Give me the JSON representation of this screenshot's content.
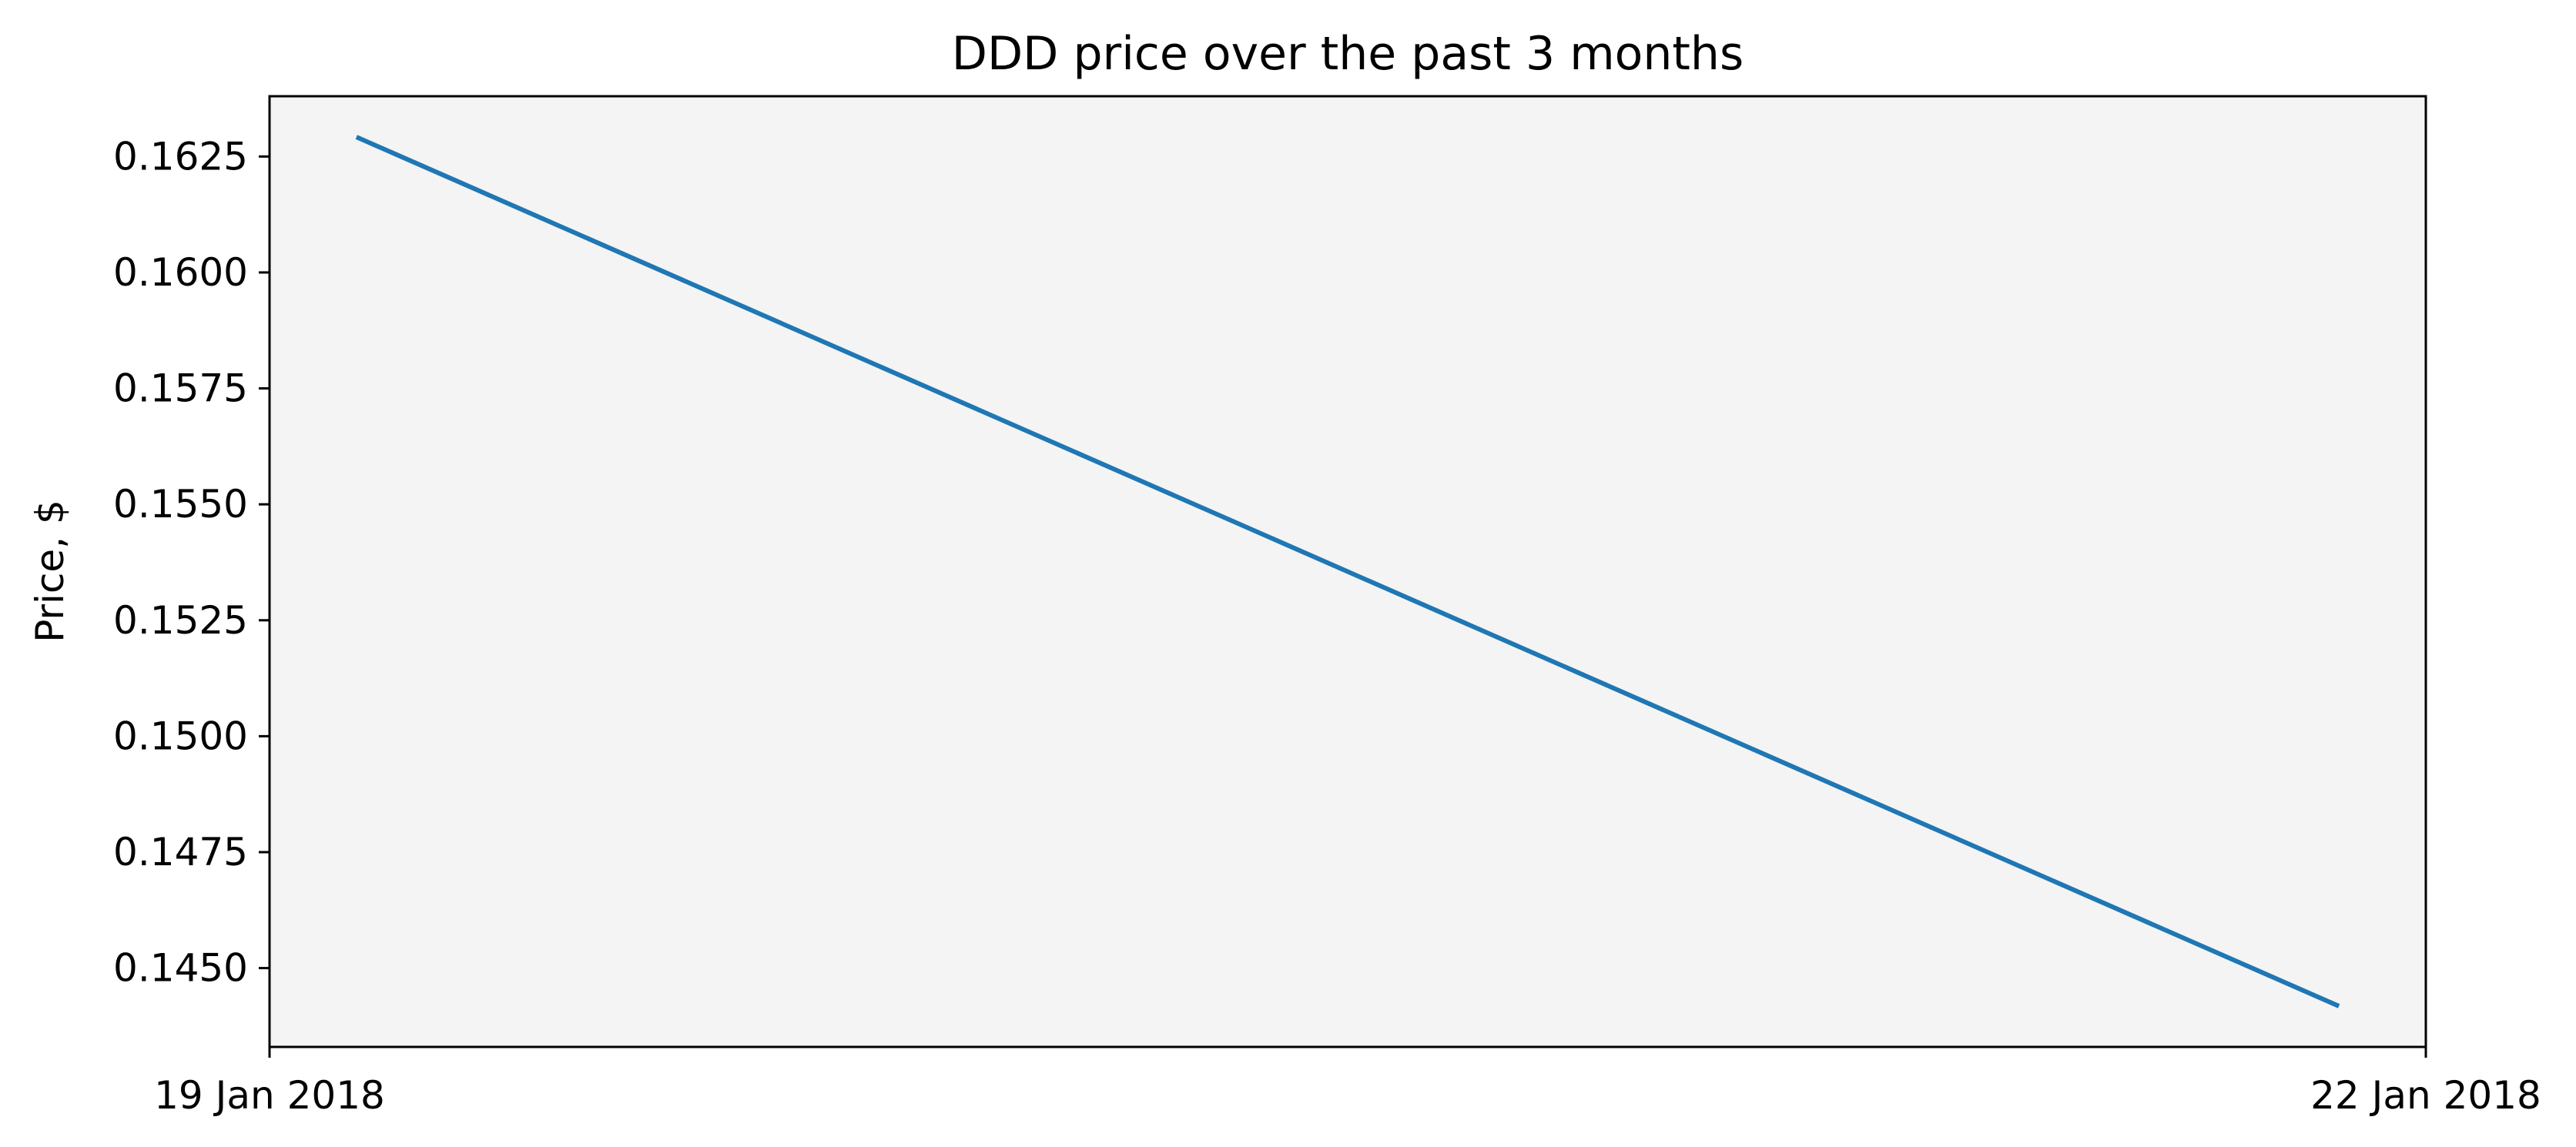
{
  "chart_data": {
    "type": "line",
    "title": "DDD price over the past 3 months",
    "xlabel": "",
    "ylabel": "Price, $",
    "x_tick_labels": [
      "19 Jan 2018",
      "22 Jan 2018"
    ],
    "y_tick_labels": [
      "0.1450",
      "0.1475",
      "0.1500",
      "0.1525",
      "0.1550",
      "0.1575",
      "0.1600",
      "0.1625"
    ],
    "x": [
      "2018-01-19",
      "2018-01-22"
    ],
    "series": [
      {
        "values": [
          0.1629,
          0.1442
        ]
      }
    ],
    "ylim": [
      0.1433,
      0.1638
    ],
    "grid": false,
    "legend": "none",
    "colors": {
      "line": "#1f77b4",
      "plot_background": "#f4f4f4",
      "figure_background": "#ffffff",
      "axes": "#000000"
    }
  }
}
